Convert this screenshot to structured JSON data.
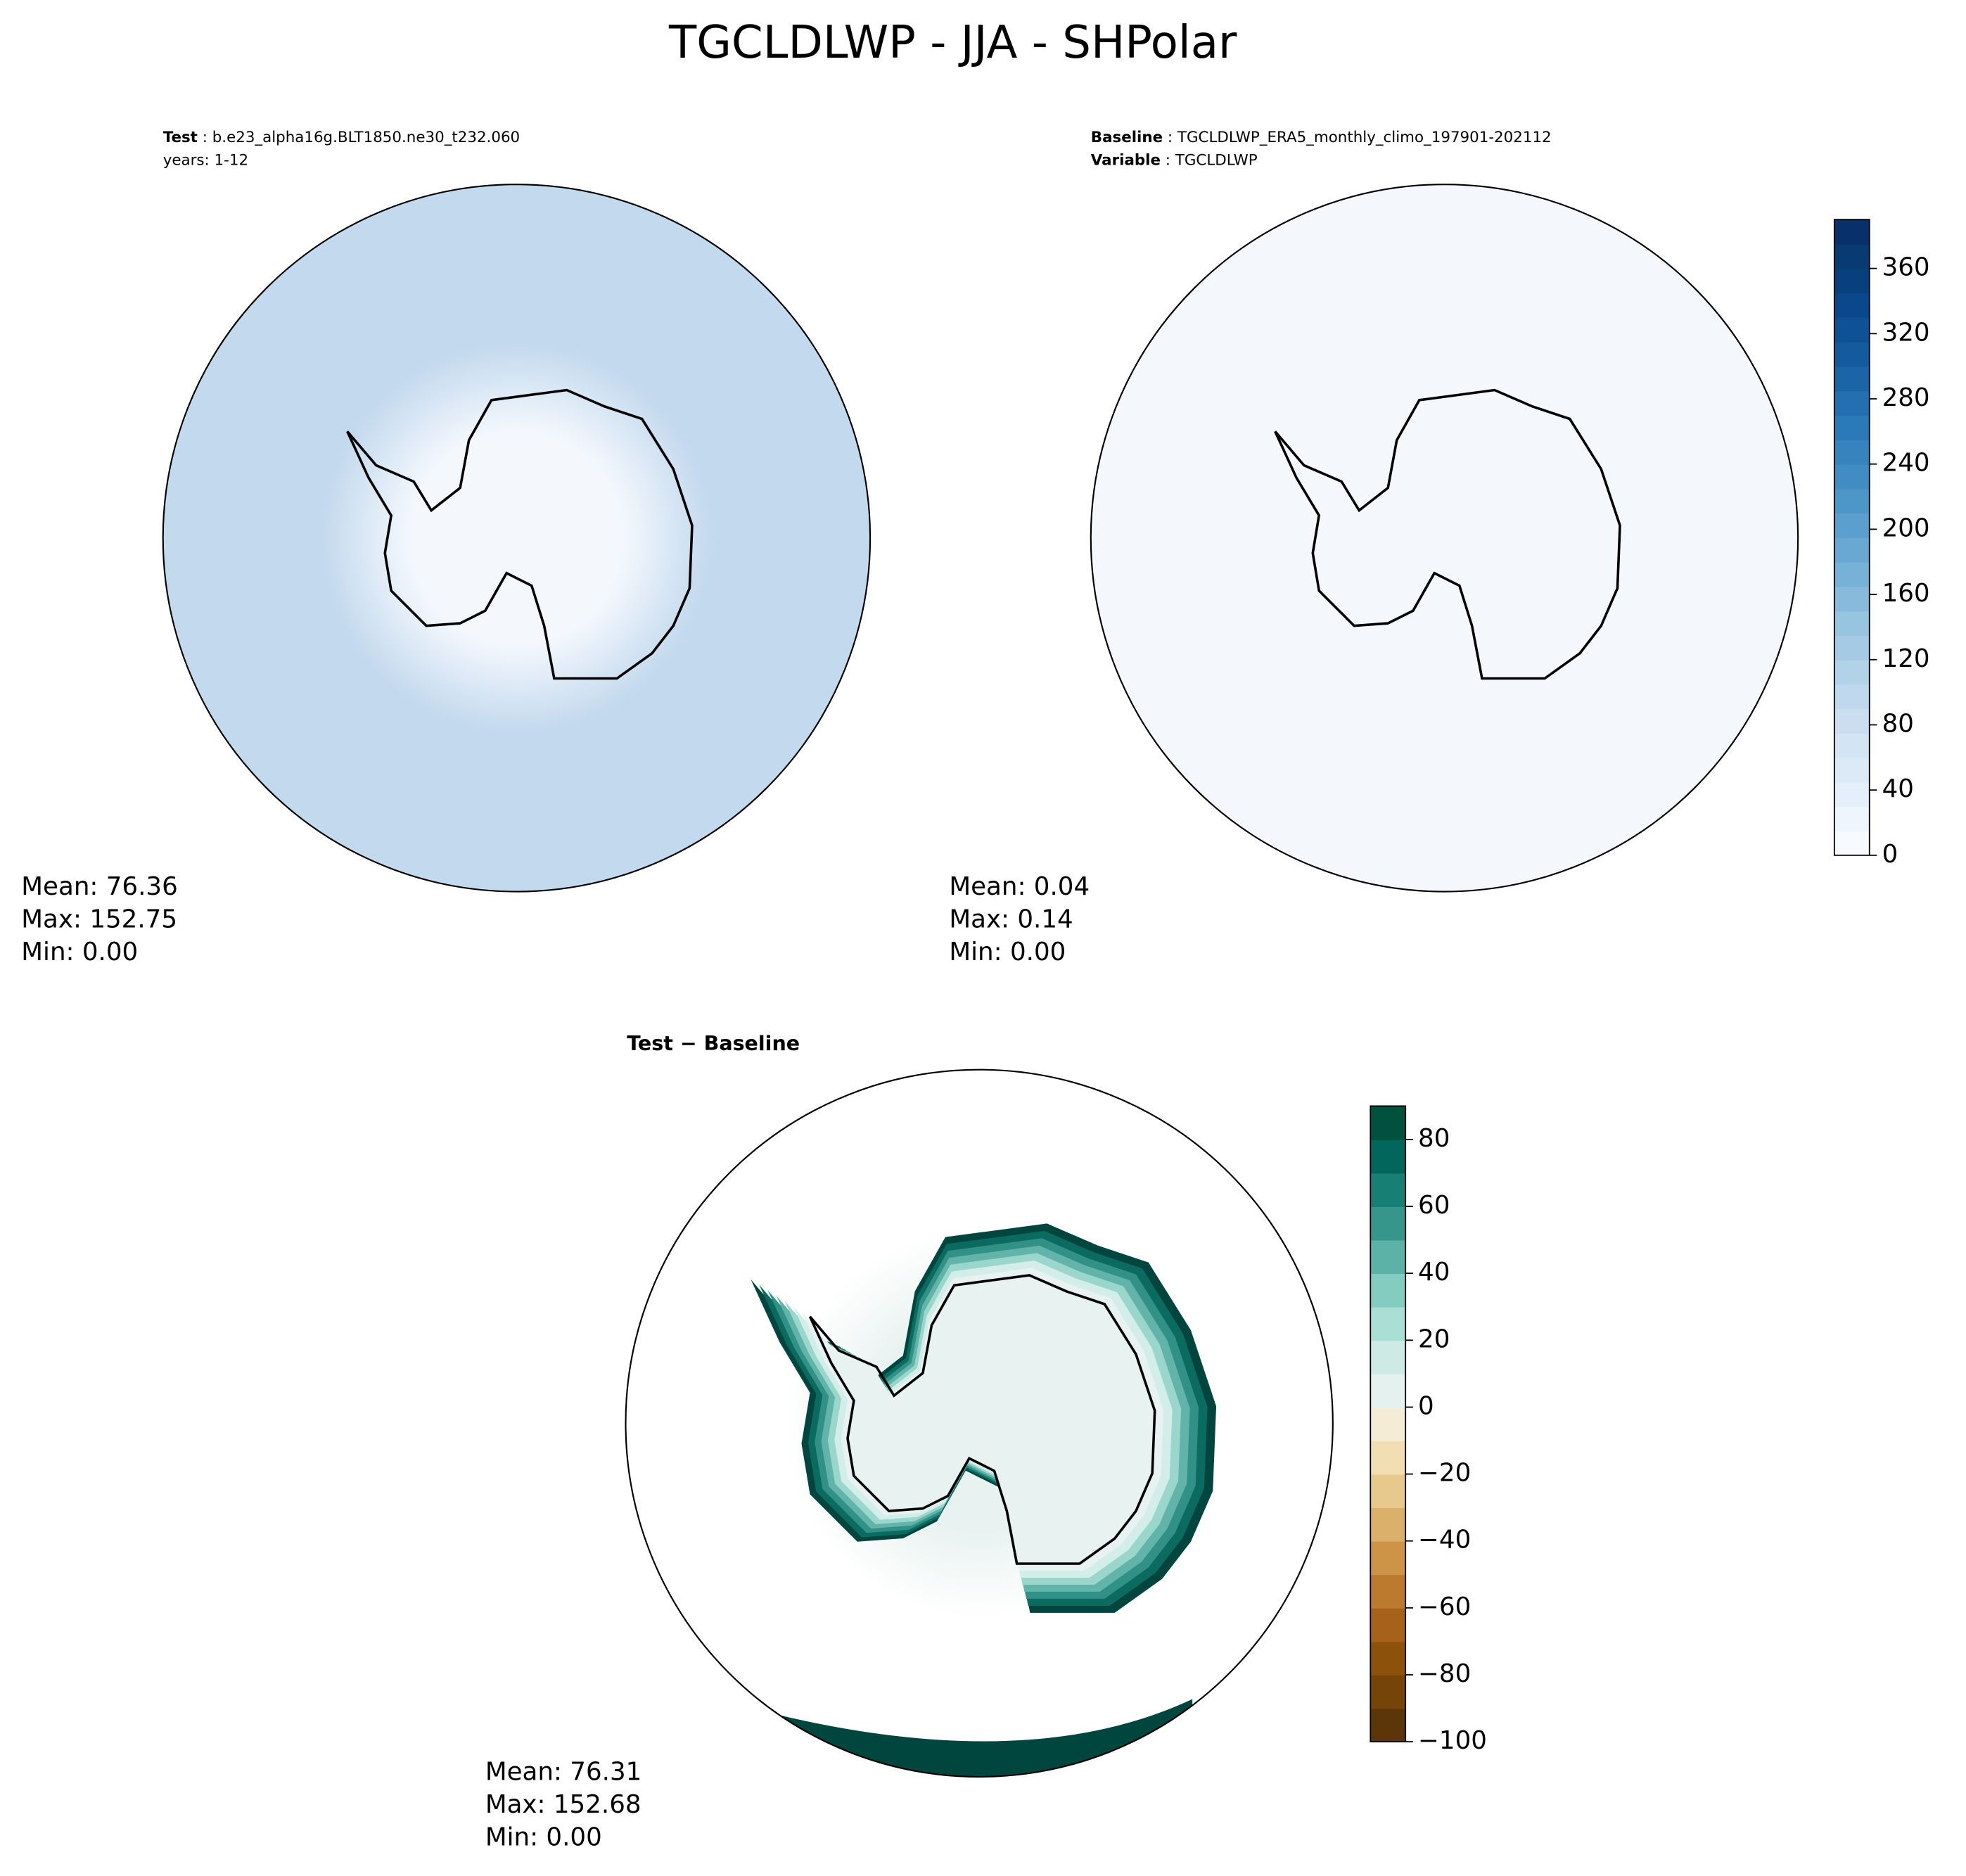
{
  "title": "TGCLDLWP - JJA - SHPolar",
  "chart_data": [
    {
      "type": "map",
      "label_key": "Test",
      "label_value": "b.e23_alpha16g.BLT1850.ne30_t232.060",
      "line2": "years: 1-12",
      "color": "#c3d9ee",
      "center_color": "#f4f8fd",
      "stats": [
        "Mean: 76.36",
        "Max: 152.75",
        "Min:  0.00"
      ]
    },
    {
      "type": "map",
      "label_key": "Baseline",
      "label_value": "TGCLDLWP_ERA5_monthly_climo_197901-202112",
      "line2_key": "Variable",
      "line2_value": "TGCLDLWP",
      "color": "#f4f8fd",
      "center_color": "#f4f8fd",
      "stats": [
        "Mean:  0.04",
        "Max:  0.14",
        "Min:  0.00"
      ],
      "colorbar": {
        "lim": [
          0,
          390
        ],
        "ticks": [
          0,
          40,
          80,
          120,
          160,
          200,
          240,
          280,
          320,
          360
        ],
        "colors": [
          "#f7fbff",
          "#eef5fc",
          "#e5eff9",
          "#dce9f6",
          "#d3e4f3",
          "#cadef0",
          "#bfd8ed",
          "#b2d2e8",
          "#a5cbe4",
          "#97c4df",
          "#87badb",
          "#77b1d6",
          "#68a8d2",
          "#5a9fcd",
          "#4d96c8",
          "#418dc3",
          "#3683be",
          "#2c79b7",
          "#236faf",
          "#1b65a7",
          "#145b9e",
          "#0e5195",
          "#0a478b",
          "#08407e",
          "#083b72",
          "#08306b"
        ]
      }
    },
    {
      "type": "map",
      "title": "Test − Baseline",
      "color": "#ffffff",
      "ring_colors": [
        "#01463e",
        "#0b6b61",
        "#329186",
        "#62b4aa",
        "#9bd6cc",
        "#d3ede9"
      ],
      "center_color": "#e8f2f0",
      "stats": [
        "Mean: 76.31",
        "Max: 152.68",
        "Min:  0.00"
      ],
      "colorbar": {
        "lim": [
          -100,
          90
        ],
        "ticks": [
          {
            "value": -100,
            "label": "−100"
          },
          {
            "value": -80,
            "label": "−80"
          },
          {
            "value": -60,
            "label": "−60"
          },
          {
            "value": -40,
            "label": "−40"
          },
          {
            "value": -20,
            "label": "−20"
          },
          0,
          20,
          40,
          60,
          80
        ],
        "colors": [
          "#5c3609",
          "#744408",
          "#8c520b",
          "#a6621b",
          "#bb7a2e",
          "#cd9448",
          "#dbb06a",
          "#e7c98d",
          "#f1dfb3",
          "#f5ecd6",
          "#e5f1ef",
          "#cdeae5",
          "#aadfd6",
          "#84ccc0",
          "#5db2a7",
          "#36968c",
          "#177f74",
          "#02665c",
          "#01513f"
        ]
      }
    }
  ]
}
